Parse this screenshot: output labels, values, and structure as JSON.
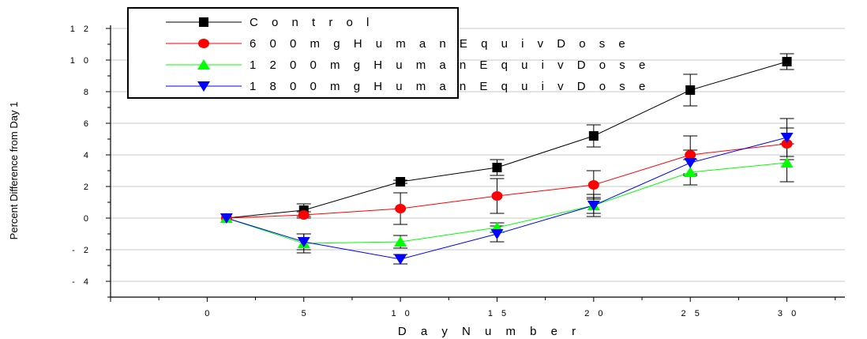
{
  "chart_data": {
    "type": "line",
    "xlabel": "Day Number",
    "ylabel": "Percent Difference from Day 1",
    "xlim": [
      -5,
      33
    ],
    "ylim": [
      -5,
      12
    ],
    "xticks": [
      0,
      5,
      10,
      15,
      20,
      25,
      30
    ],
    "yticks": [
      -4,
      -2,
      0,
      2,
      4,
      6,
      8,
      10,
      12
    ],
    "x_tick_labels": [
      "0",
      "5",
      "1 0",
      "1 5",
      "2 0",
      "2 5",
      "3 0"
    ],
    "y_tick_labels": [
      "- 4",
      "- 2",
      "0",
      "2",
      "4",
      "6",
      "8",
      "1 0",
      "1 2"
    ],
    "grid": "horizontal",
    "legend_position": "top-left",
    "x": [
      1,
      5,
      10,
      15,
      20,
      25,
      30
    ],
    "series": [
      {
        "name": "Control",
        "color": "#000000",
        "marker": "square",
        "values": [
          0,
          0.5,
          2.3,
          3.2,
          5.2,
          8.1,
          9.9
        ],
        "errors": [
          0,
          0.4,
          0.1,
          0.5,
          0.7,
          1.0,
          0.5
        ]
      },
      {
        "name": "600mg Human Equiv Dose",
        "color": "#ff0000",
        "marker": "circle",
        "values": [
          0,
          0.2,
          0.6,
          1.4,
          2.1,
          4.0,
          4.7
        ],
        "errors": [
          0,
          0.2,
          1.0,
          1.1,
          0.9,
          1.2,
          1.0
        ]
      },
      {
        "name": "1200mg Human Equiv Dose",
        "color": "#00ff00",
        "marker": "triangle-up",
        "values": [
          0,
          -1.6,
          -1.5,
          -0.6,
          0.8,
          2.9,
          3.5
        ],
        "errors": [
          0,
          0.6,
          0.4,
          0.3,
          0.7,
          0.8,
          1.2
        ]
      },
      {
        "name": "1800mg Human Equiv Dose",
        "color": "#0000ff",
        "marker": "triangle-down",
        "values": [
          0,
          -1.5,
          -2.6,
          -1.0,
          0.8,
          3.5,
          5.1
        ],
        "errors": [
          0,
          0.5,
          0.3,
          0.5,
          0.5,
          0.8,
          1.2
        ]
      }
    ]
  },
  "legend": {
    "entries": [
      "C o n t r o l",
      "6 0 0 m g   H u m a n   E q u i v   D o s e",
      "1 2 0 0 m g   H u m a n   E q u i v   D o s e",
      "1 8 0 0 m g   H u m a n   E q u i v   D o s e"
    ]
  },
  "labels": {
    "x_axis": "D a y  N u m b e r",
    "y_axis": "Percent Difference from Day 1"
  }
}
